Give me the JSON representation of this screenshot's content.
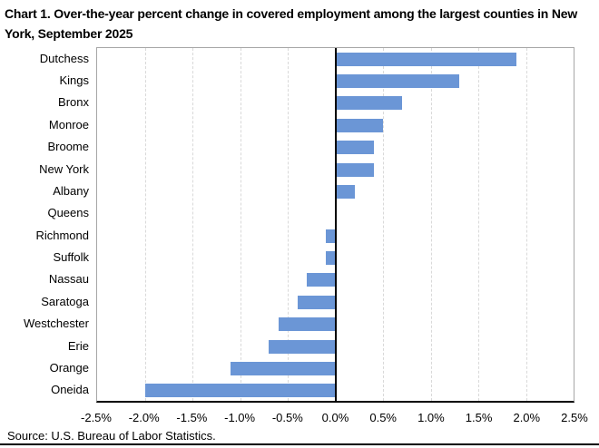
{
  "title": "Chart 1. Over-the-year percent change in covered employment among the largest counties in New York, September 2025",
  "source_note": "Source: U.S. Bureau of Labor Statistics.",
  "colors": {
    "bar": "#6b96d6",
    "gridline": "#d9d9d9",
    "plot_border": "#a6a6a6",
    "axis": "#000000",
    "text": "#000000",
    "background": "#ffffff"
  },
  "chart_data": {
    "type": "bar",
    "orientation": "horizontal",
    "title": "Chart 1. Over-the-year percent change in covered employment among the largest counties in New York, September 2025",
    "xlabel": "",
    "ylabel": "",
    "categories": [
      "Dutchess",
      "Kings",
      "Bronx",
      "Monroe",
      "Broome",
      "New York",
      "Albany",
      "Queens",
      "Richmond",
      "Suffolk",
      "Nassau",
      "Saratoga",
      "Westchester",
      "Erie",
      "Orange",
      "Oneida"
    ],
    "values": [
      1.9,
      1.3,
      0.7,
      0.5,
      0.4,
      0.4,
      0.2,
      0.0,
      -0.1,
      -0.1,
      -0.3,
      -0.4,
      -0.6,
      -0.7,
      -1.1,
      -2.0
    ],
    "unit": "%",
    "xlim": [
      -2.5,
      2.5
    ],
    "x_tick_step": 0.5,
    "x_tick_labels": [
      "-2.5%",
      "-2.0%",
      "-1.5%",
      "-1.0%",
      "-0.5%",
      "0.0%",
      "0.5%",
      "1.0%",
      "1.5%",
      "2.0%",
      "2.5%"
    ],
    "grid": "vertical-dashed",
    "legend": "none"
  }
}
